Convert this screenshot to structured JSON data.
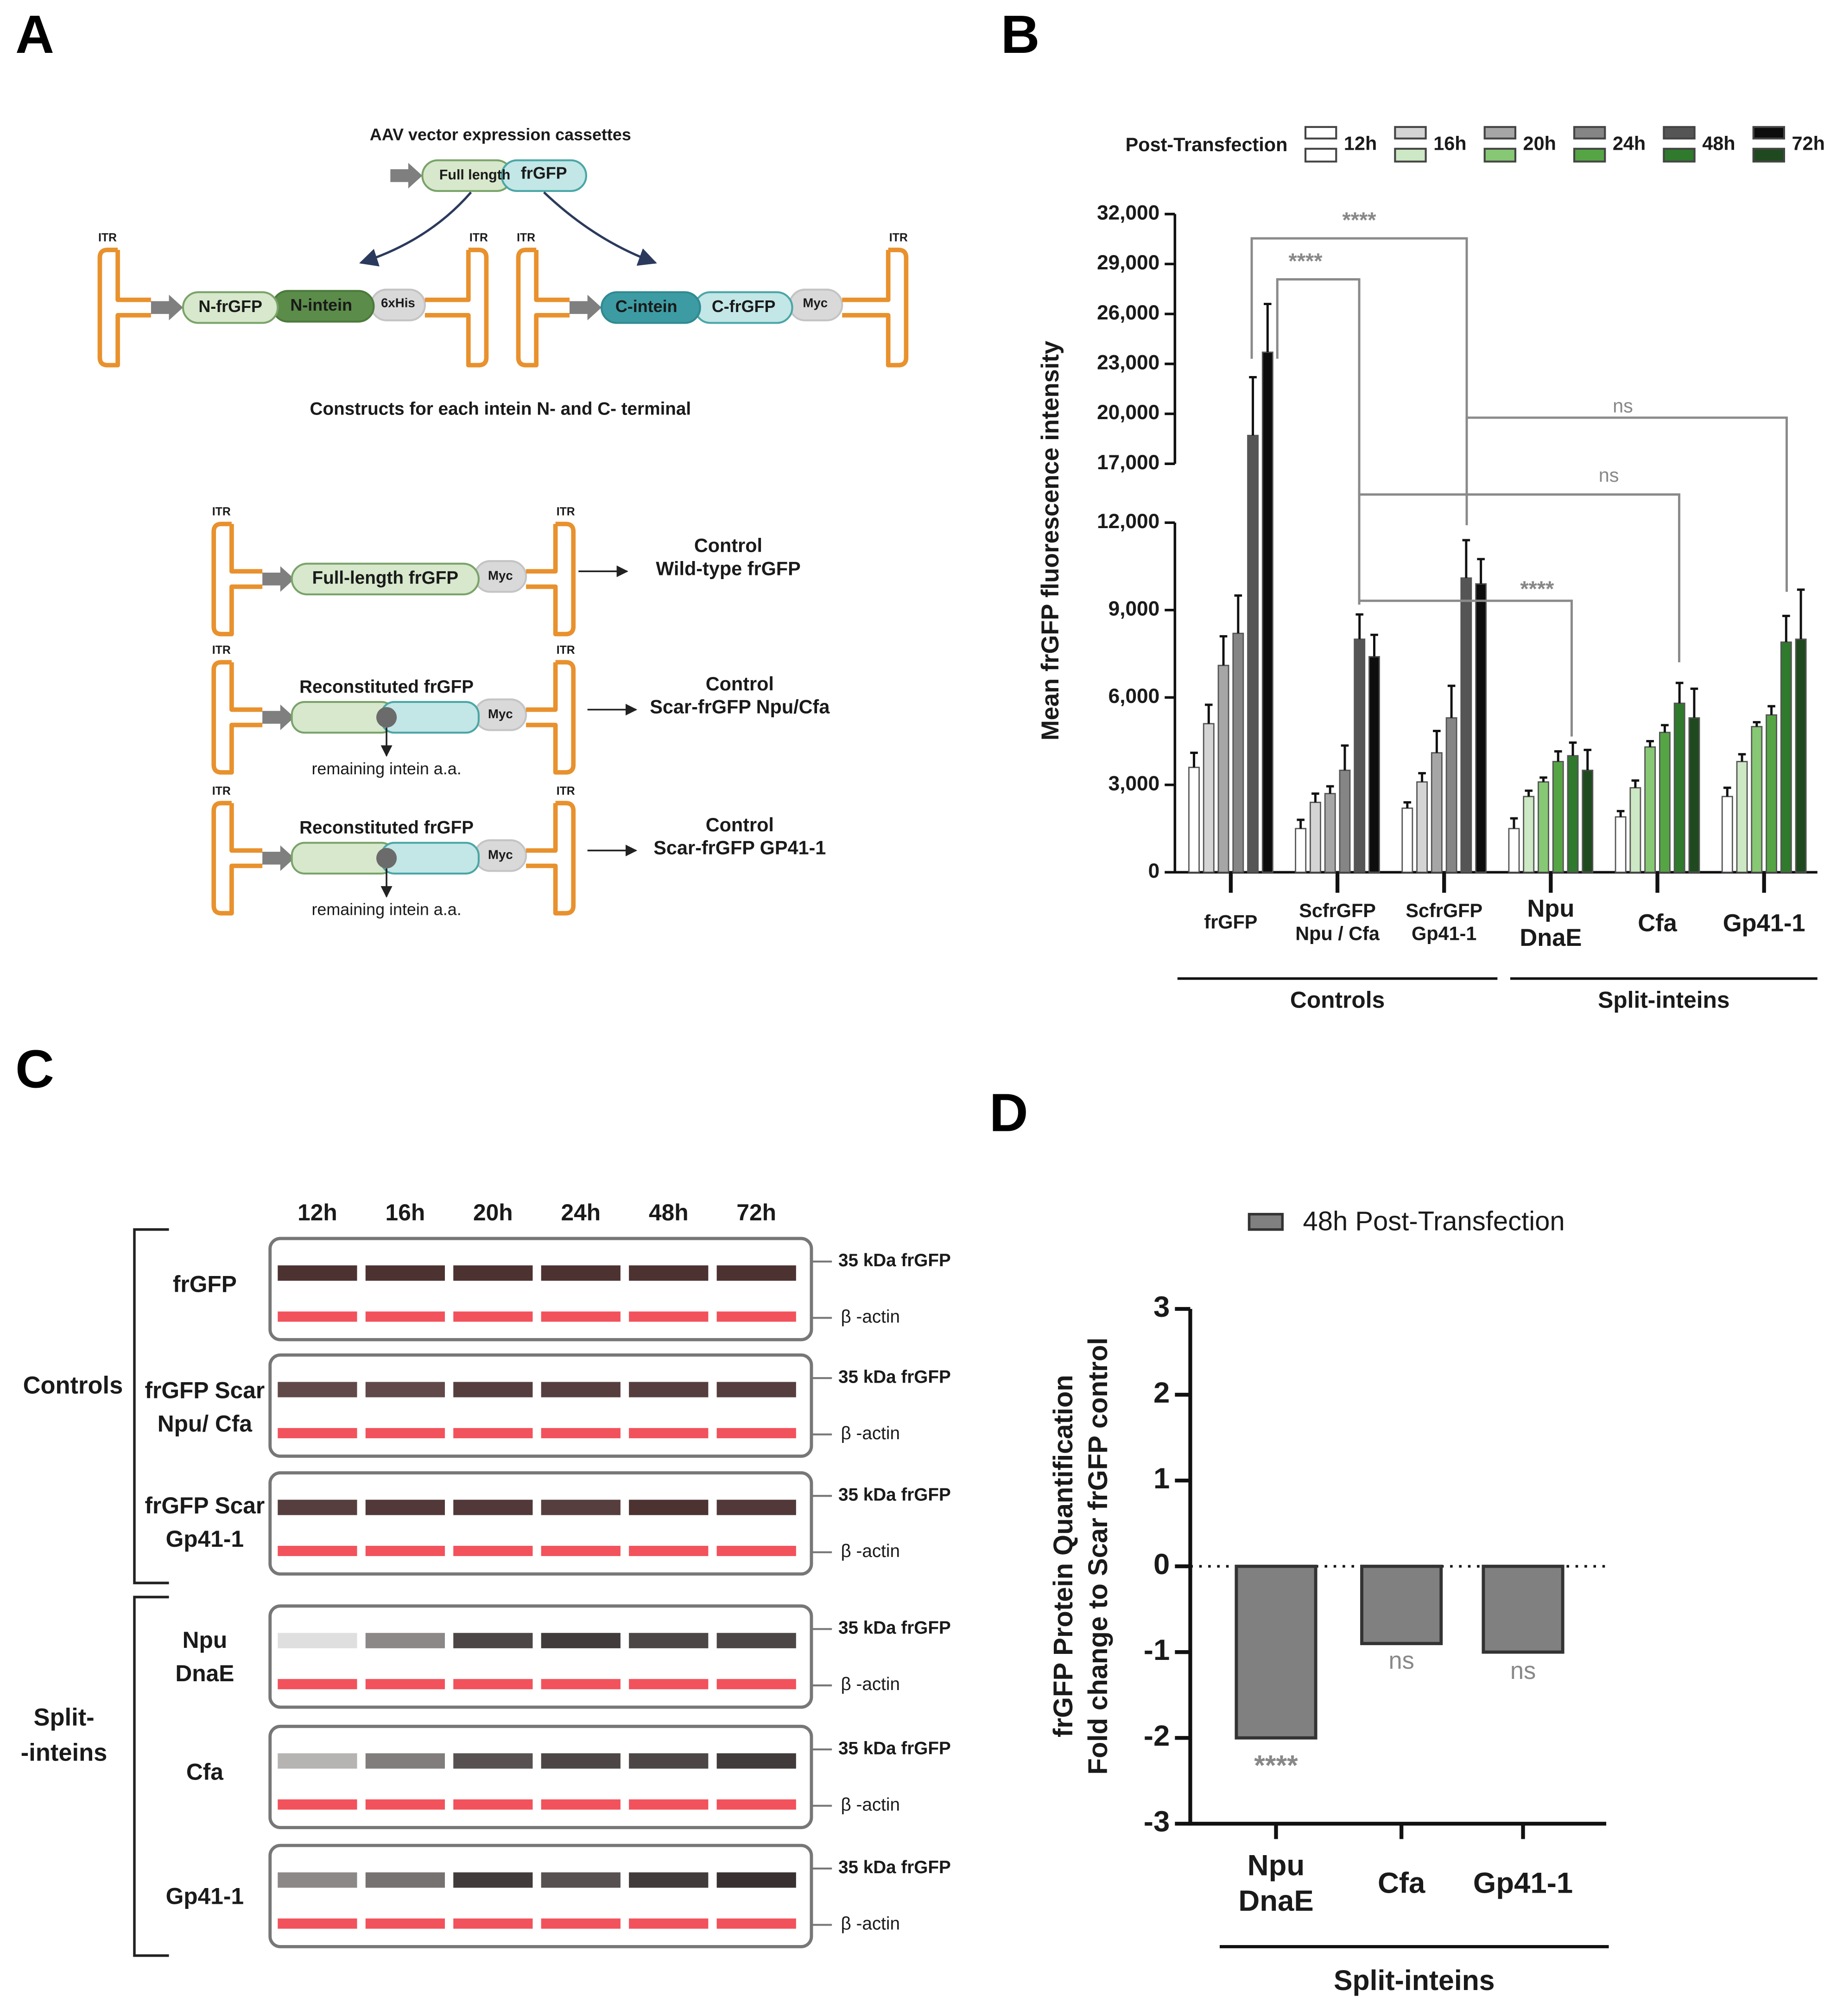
{
  "panel_labels": [
    "A",
    "B",
    "C",
    "D"
  ],
  "diagram": {
    "title": "AAV vector expression cassettes",
    "full_length": "Full length",
    "frgfp": "frGFP",
    "itr": "ITR",
    "n_frgfp": "N-frGFP",
    "n_intein": "N-intein",
    "his": "6xHis",
    "c_intein": "C-intein",
    "c_frgfp": "C-frGFP",
    "myc": "Myc",
    "subtitle": "Constructs for each intein N- and C- terminal",
    "controls": [
      {
        "construct": "Full-length frGFP",
        "result": "Control\nWild-type frGFP"
      },
      {
        "construct": "Reconstituted frGFP",
        "note": "remaining intein a.a.",
        "result": "Control\nScar-frGFP Npu/Cfa"
      },
      {
        "construct": "Reconstituted frGFP",
        "note": "remaining intein a.a.",
        "result": "Control\nScar-frGFP GP41-1"
      }
    ]
  },
  "blot": {
    "timepoints": [
      "12h",
      "16h",
      "20h",
      "24h",
      "48h",
      "72h"
    ],
    "band_label": "35 kDa frGFP",
    "loading_label": "β -actin",
    "groups": [
      {
        "name": "Controls",
        "rows": [
          "frGFP",
          "frGFP Scar\nNpu/ Cfa",
          "frGFP Scar\nGp41-1"
        ]
      },
      {
        "name": "Split-\n-inteins",
        "rows": [
          "Npu\nDnaE",
          "Cfa",
          "Gp41-1"
        ]
      }
    ]
  },
  "chart_data": [
    {
      "type": "bar",
      "legend_title": "Post-Transfection",
      "ylabel": "Mean frGFP fluorescence intensity",
      "categories": [
        "frGFP",
        "ScfrGFP\nNpu / Cfa",
        "ScfrGFP\nGp41-1",
        "Npu\nDnaE",
        "Cfa",
        "Gp41-1"
      ],
      "group_labels": [
        "Controls",
        "Split-inteins"
      ],
      "series": [
        {
          "name": "12h",
          "color": "#ffffff",
          "color_split": "#ffffff",
          "values": [
            3600,
            1500,
            2200,
            1500,
            1900,
            2600
          ],
          "errors": [
            500,
            300,
            200,
            350,
            200,
            300
          ]
        },
        {
          "name": "16h",
          "color": "#d4d4d4",
          "color_split": "#cde8c4",
          "values": [
            5100,
            2400,
            3100,
            2600,
            2900,
            3800
          ],
          "errors": [
            650,
            300,
            300,
            200,
            250,
            250
          ]
        },
        {
          "name": "20h",
          "color": "#a6a6a6",
          "color_split": "#86c874",
          "values": [
            7100,
            2700,
            4100,
            3100,
            4300,
            5000
          ],
          "errors": [
            1000,
            250,
            750,
            150,
            200,
            150
          ]
        },
        {
          "name": "24h",
          "color": "#858585",
          "color_split": "#55a544",
          "values": [
            8200,
            3500,
            5300,
            3800,
            4800,
            5400
          ],
          "errors": [
            1300,
            850,
            1100,
            350,
            250,
            300
          ]
        },
        {
          "name": "48h",
          "color": "#555555",
          "color_split": "#2f7a2c",
          "values": [
            18700,
            8000,
            10100,
            4000,
            5800,
            7900
          ],
          "errors": [
            3500,
            850,
            1300,
            450,
            700,
            900
          ]
        },
        {
          "name": "72h",
          "color": "#0d0d0d",
          "color_split": "#1f4a1f",
          "values": [
            23700,
            7400,
            9900,
            3500,
            5300,
            8000
          ],
          "errors": [
            2900,
            750,
            850,
            700,
            1000,
            1700
          ]
        }
      ],
      "ylim": [
        0,
        32000
      ],
      "y_break": [
        12000,
        17000
      ],
      "yticks": [
        0,
        {
          "value": 3000,
          "label": "3,000"
        },
        {
          "value": 6000,
          "label": "6,000"
        },
        {
          "value": 9000,
          "label": "9,000"
        },
        {
          "value": 12000,
          "label": "12,000"
        },
        {
          "value": 17000,
          "label": "17,000"
        },
        {
          "value": 20000,
          "label": "20,000"
        },
        {
          "value": 23000,
          "label": "23,000"
        },
        {
          "value": 26000,
          "label": "26,000"
        },
        {
          "value": 29000,
          "label": "29,000"
        },
        {
          "value": 32000,
          "label": "32,000"
        }
      ],
      "annotations": [
        "****",
        "****",
        "ns",
        "ns",
        "****"
      ]
    },
    {
      "type": "bar",
      "legend": "48h Post-Transfection",
      "ylabel": "frGFP Protein Quantification\nFold change to Scar frGFP control",
      "categories": [
        "Npu\nDnaE",
        "Cfa",
        "Gp41-1"
      ],
      "values": [
        -2.0,
        -0.9,
        -1.0
      ],
      "color": "#808080",
      "annotations": [
        "****",
        "ns",
        "ns"
      ],
      "group_label": "Split-inteins",
      "ylim": [
        -3,
        3
      ],
      "yticks": [
        -3,
        -2,
        -1,
        0,
        1,
        2,
        3
      ]
    }
  ]
}
